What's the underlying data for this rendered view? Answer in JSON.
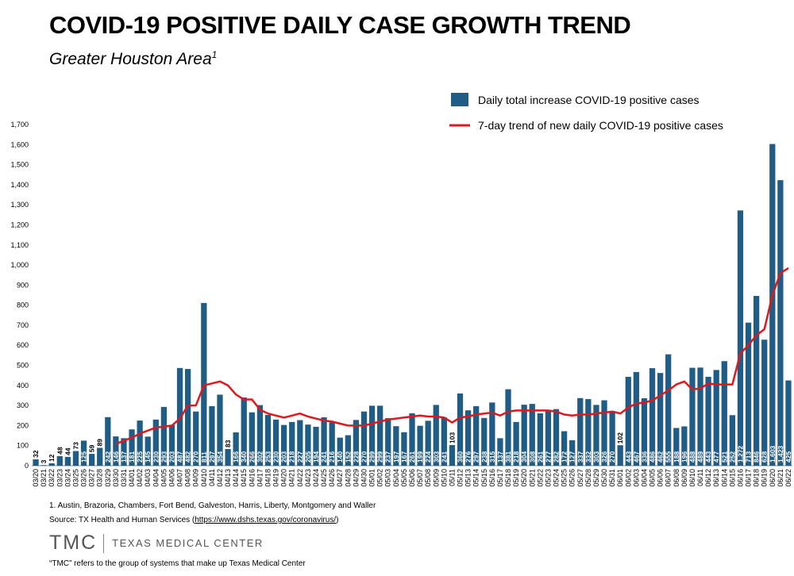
{
  "header": {
    "title": "COVID-19 POSITIVE DAILY CASE GROWTH TREND",
    "subtitle": "Greater Houston Area",
    "subtitle_sup": "1"
  },
  "footer": {
    "footnote": "1. Austin, Brazoria, Chambers, Fort Bend, Galveston, Harris, Liberty, Montgomery and Waller",
    "source_prefix": "Source: TX Health and Human Services (",
    "source_link": "https://www.dshs.texas.gov/coronavirus/",
    "source_suffix": ")",
    "logo_mark": "TMC",
    "logo_text": "TEXAS MEDICAL CENTER",
    "logo_note": "“TMC” refers to the group of systems that make up Texas Medical Center"
  },
  "colors": {
    "bar": "#1f5c86",
    "line": "#e3161c"
  },
  "chart_data": {
    "type": "bar",
    "ylim": [
      0,
      1700
    ],
    "yticks": [
      "0",
      "100",
      "200",
      "300",
      "400",
      "500",
      "600",
      "700",
      "800",
      "900",
      "1,000",
      "1,100",
      "1,200",
      "1,300",
      "1,400",
      "1,500",
      "1,600",
      "1,700"
    ],
    "legend_placement": "top-right",
    "grid": false,
    "categories": [
      "03/20",
      "03/21",
      "03/22",
      "03/23",
      "03/24",
      "03/25",
      "03/26",
      "03/27",
      "03/28",
      "03/29",
      "03/30",
      "03/31",
      "04/01",
      "04/02",
      "04/03",
      "04/04",
      "04/05",
      "04/06",
      "04/07",
      "04/08",
      "04/09",
      "04/10",
      "04/11",
      "04/12",
      "04/13",
      "04/14",
      "04/15",
      "04/16",
      "04/17",
      "04/18",
      "04/19",
      "04/20",
      "04/21",
      "04/22",
      "04/23",
      "04/24",
      "04/25",
      "04/26",
      "04/27",
      "04/28",
      "04/29",
      "04/30",
      "05/01",
      "05/02",
      "05/03",
      "05/04",
      "05/05",
      "05/06",
      "05/07",
      "05/08",
      "05/09",
      "05/10",
      "05/11",
      "05/12",
      "05/13",
      "05/14",
      "05/15",
      "05/16",
      "05/17",
      "05/18",
      "05/19",
      "05/20",
      "05/21",
      "05/22",
      "05/23",
      "05/24",
      "05/25",
      "05/26",
      "05/27",
      "05/28",
      "05/29",
      "05/30",
      "05/31",
      "06/01",
      "06/02",
      "06/03",
      "06/04",
      "06/05",
      "06/06",
      "06/07",
      "06/08",
      "06/09",
      "06/10",
      "06/11",
      "06/12",
      "06/13",
      "06/14",
      "06/15",
      "06/16",
      "06/17",
      "06/18",
      "06/19",
      "06/20",
      "06/21",
      "06/22"
    ],
    "series": [
      {
        "name": "Daily total increase COVID-19 positive cases",
        "values": [
          32,
          3,
          12,
          48,
          44,
          73,
          125,
          59,
          89,
          242,
          146,
          137,
          181,
          225,
          145,
          230,
          293,
          203,
          487,
          482,
          270,
          811,
          297,
          354,
          83,
          166,
          340,
          266,
          302,
          253,
          230,
          203,
          218,
          227,
          205,
          194,
          241,
          216,
          140,
          152,
          228,
          270,
          299,
          299,
          237,
          197,
          167,
          261,
          199,
          224,
          303,
          241,
          103,
          360,
          276,
          297,
          238,
          315,
          137,
          381,
          218,
          304,
          308,
          261,
          277,
          282,
          172,
          127,
          337,
          332,
          303,
          326,
          270,
          102,
          443,
          467,
          336,
          486,
          462,
          555,
          188,
          196,
          488,
          489,
          443,
          477,
          521,
          252,
          1272,
          713,
          846,
          628,
          1603,
          1423,
          425
        ],
        "labels": [
          "32",
          "3",
          "12",
          "48",
          "44",
          "73",
          "125",
          "59",
          "89",
          "242",
          "146",
          "137",
          "181",
          "225",
          "145",
          "230",
          "293",
          "203",
          "487",
          "482",
          "270",
          "811",
          "297",
          "354",
          "83",
          "166",
          "340",
          "266",
          "302",
          "253",
          "230",
          "203",
          "218",
          "227",
          "205",
          "194",
          "241",
          "216",
          "140",
          "152",
          "228",
          "270",
          "299",
          "299",
          "237",
          "197",
          "167",
          "261",
          "199",
          "224",
          "303",
          "241",
          "103",
          "360",
          "276",
          "297",
          "238",
          "315",
          "137",
          "381",
          "218",
          "304",
          "308",
          "261",
          "277",
          "282",
          "172",
          "127",
          "337",
          "332",
          "303",
          "326",
          "270",
          "102",
          "443",
          "467",
          "336",
          "486",
          "462",
          "555",
          "188",
          "196",
          "488",
          "489",
          "443",
          "477",
          "521",
          "252",
          "1,272",
          "713",
          "846",
          "628",
          "1,603",
          "1,423",
          "425"
        ]
      },
      {
        "name": "7-day trend of new daily COVID-19 positive cases",
        "values": [
          null,
          null,
          null,
          null,
          null,
          null,
          null,
          null,
          null,
          null,
          108,
          125,
          140,
          160,
          175,
          190,
          195,
          200,
          235,
          300,
          300,
          400,
          410,
          420,
          400,
          355,
          330,
          330,
          280,
          260,
          250,
          240,
          250,
          260,
          245,
          235,
          225,
          220,
          210,
          200,
          200,
          200,
          210,
          220,
          230,
          235,
          240,
          245,
          250,
          245,
          245,
          240,
          215,
          240,
          245,
          255,
          260,
          265,
          250,
          270,
          275,
          275,
          275,
          275,
          275,
          270,
          255,
          250,
          255,
          255,
          260,
          265,
          270,
          260,
          290,
          310,
          315,
          325,
          350,
          375,
          405,
          420,
          380,
          385,
          410,
          405,
          405,
          405,
          560,
          600,
          650,
          680,
          850,
          960,
          985
        ]
      }
    ]
  }
}
